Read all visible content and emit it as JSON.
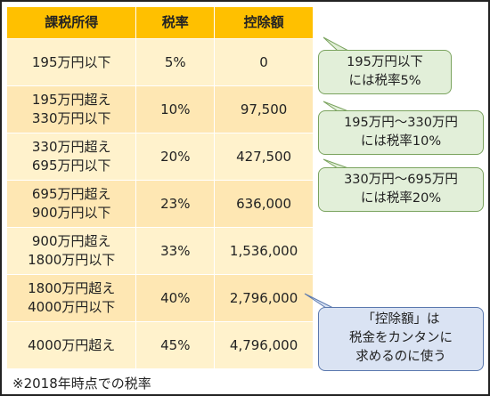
{
  "table": {
    "headers": [
      "課税所得",
      "税率",
      "控除額"
    ],
    "rows": [
      {
        "income": [
          "195万円以下"
        ],
        "rate": "5%",
        "deduction": "0"
      },
      {
        "income": [
          "195万円超え",
          "330万円以下"
        ],
        "rate": "10%",
        "deduction": "97,500"
      },
      {
        "income": [
          "330万円超え",
          "695万円以下"
        ],
        "rate": "20%",
        "deduction": "427,500"
      },
      {
        "income": [
          "695万円超え",
          "900万円以下"
        ],
        "rate": "23%",
        "deduction": "636,000"
      },
      {
        "income": [
          "900万円超え",
          "1800万円以下"
        ],
        "rate": "33%",
        "deduction": "1,536,000"
      },
      {
        "income": [
          "1800万円超え",
          "4000万円以下"
        ],
        "rate": "40%",
        "deduction": "2,796,000"
      },
      {
        "income": [
          "4000万円超え"
        ],
        "rate": "45%",
        "deduction": "4,796,000"
      }
    ]
  },
  "callouts": [
    {
      "lines": [
        "195万円以下",
        "には税率5%"
      ],
      "color": "#e2efd9"
    },
    {
      "lines": [
        "195万円～330万円",
        "には税率10%"
      ],
      "color": "#e2efd9"
    },
    {
      "lines": [
        "330万円～695万円",
        "には税率20%"
      ],
      "color": "#e2efd9"
    },
    {
      "lines": [
        "「控除額」は",
        "税金をカンタンに",
        "求めるのに使う"
      ],
      "color": "#dae3f3"
    }
  ],
  "note": "※2018年時点での税率",
  "colors": {
    "header": "#ffc000",
    "row_light": "#fff2cc",
    "row_dark": "#fee7b3"
  }
}
